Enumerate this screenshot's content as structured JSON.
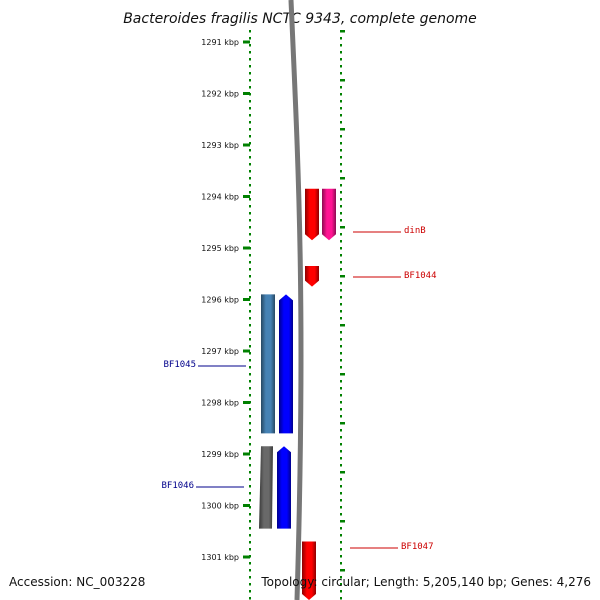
{
  "title": "Bacteroides fragilis NCTC 9343, complete genome",
  "footer": {
    "accession": "Accession: NC_003228",
    "topology": "Topology: circular; Length: 5,205,140 bp; Genes: 4,276"
  },
  "ruler": {
    "ticks": [
      {
        "kbp": 1291,
        "label": "1291 kbp"
      },
      {
        "kbp": 1292,
        "label": "1292 kbp"
      },
      {
        "kbp": 1293,
        "label": "1293 kbp"
      },
      {
        "kbp": 1294,
        "label": "1294 kbp"
      },
      {
        "kbp": 1295,
        "label": "1295 kbp"
      },
      {
        "kbp": 1296,
        "label": "1296 kbp"
      },
      {
        "kbp": 1297,
        "label": "1297 kbp"
      },
      {
        "kbp": 1298,
        "label": "1298 kbp"
      },
      {
        "kbp": 1299,
        "label": "1299 kbp"
      },
      {
        "kbp": 1300,
        "label": "1300 kbp"
      },
      {
        "kbp": 1301,
        "label": "1301 kbp"
      }
    ],
    "color": "#008000"
  },
  "colors": {
    "backbone": "#777777",
    "reverse_label": "#cc0000",
    "forward_label": "#00008b"
  },
  "features": [
    {
      "name": "dinB",
      "strand": "reverse",
      "labeled": true,
      "color": "#ff0000",
      "start_kbp": 1293.85,
      "end_kbp": 1294.85
    },
    {
      "name": "dinB-pink",
      "strand": "reverse",
      "labeled": false,
      "color": "#ff1493",
      "start_kbp": 1293.85,
      "end_kbp": 1294.85
    },
    {
      "name": "BF1044",
      "strand": "reverse",
      "labeled": true,
      "color": "#ff0000",
      "start_kbp": 1295.35,
      "end_kbp": 1295.75
    },
    {
      "name": "BF1045",
      "strand": "forward",
      "labeled": true,
      "color": "#0000ff",
      "start_kbp": 1295.9,
      "end_kbp": 1298.6
    },
    {
      "name": "BF1045-cds",
      "strand": "forward",
      "labeled": false,
      "color": "#4682b4",
      "start_kbp": 1295.9,
      "end_kbp": 1298.6
    },
    {
      "name": "BF1046",
      "strand": "forward",
      "labeled": true,
      "color": "#0000ff",
      "start_kbp": 1298.85,
      "end_kbp": 1300.45
    },
    {
      "name": "BF1046-pseudo",
      "strand": "forward",
      "labeled": false,
      "color": "#696969",
      "start_kbp": 1298.85,
      "end_kbp": 1300.45
    },
    {
      "name": "BF1047",
      "strand": "reverse",
      "labeled": true,
      "color": "#ff0000",
      "start_kbp": 1300.7,
      "end_kbp": 1301.9
    }
  ]
}
